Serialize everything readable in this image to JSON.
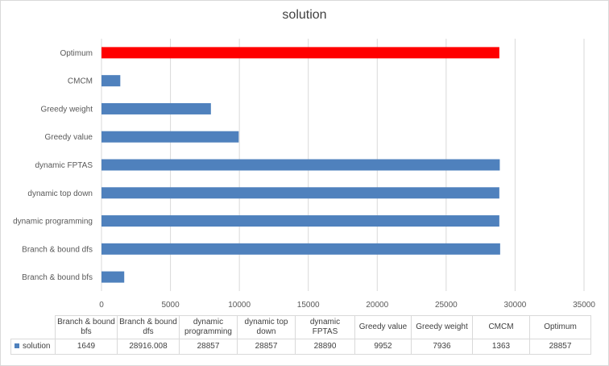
{
  "chart_data": {
    "type": "bar",
    "orientation": "horizontal",
    "title": "solution",
    "categories": [
      "Branch & bound bfs",
      "Branch & bound dfs",
      "dynamic programming",
      "dynamic top down",
      "dynamic FPTAS",
      "Greedy value",
      "Greedy weight",
      "CMCM",
      "Optimum"
    ],
    "table_headers": [
      "Branch & bound bfs",
      "Branch & bound dfs",
      "dynamic programming",
      "dynamic top down",
      "dynamic FPTAS",
      "Greedy value",
      "Greedy weight",
      "CMCM",
      "Optimum"
    ],
    "series": [
      {
        "name": "solution",
        "values": [
          1649,
          28916.008,
          28857,
          28857,
          28890,
          9952,
          7936,
          1363,
          28857
        ],
        "value_labels": [
          "1649",
          "28916.008",
          "28857",
          "28857",
          "28890",
          "9952",
          "7936",
          "1363",
          "28857"
        ]
      }
    ],
    "xlim": [
      0,
      35000
    ],
    "xticks": [
      "0",
      "5000",
      "10000",
      "15000",
      "20000",
      "25000",
      "30000",
      "35000"
    ],
    "grid": true,
    "colors": {
      "bar": "#4f81bd",
      "highlight": "#ff0000",
      "grid": "#d9d9d9"
    },
    "highlight_category": "Optimum",
    "data_table": true
  }
}
